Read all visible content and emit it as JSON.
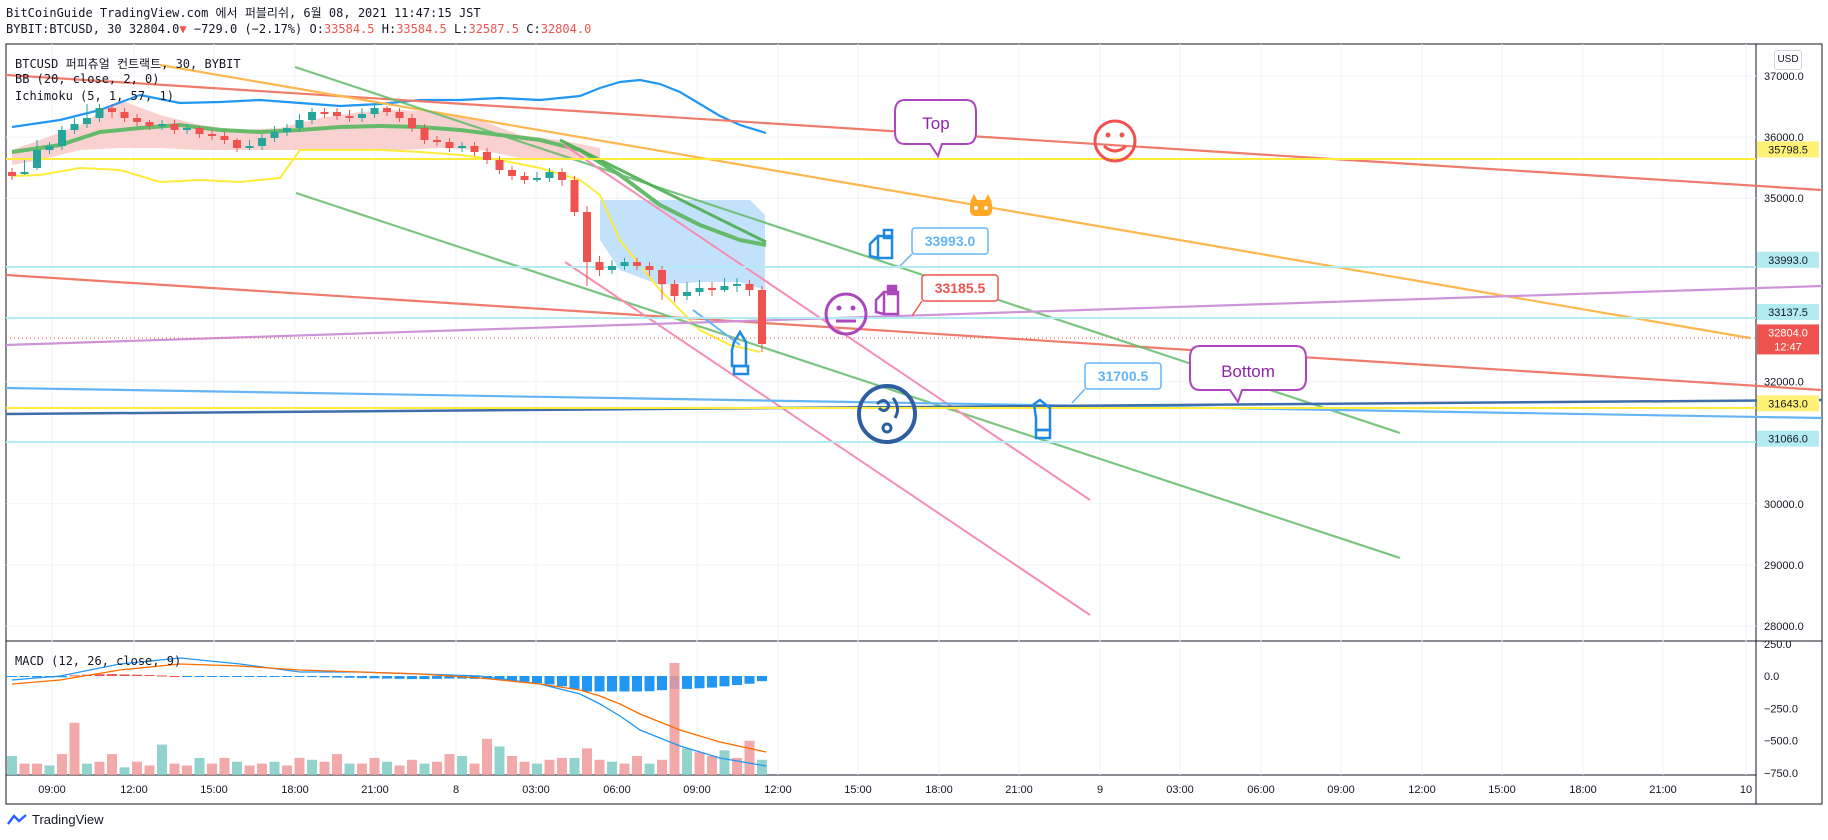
{
  "header": {
    "line1": "BitCoinGuide TradingView.com 에서 퍼블리쉬, 6월 08, 2021 11:47:15 JST",
    "symbol": "BYBIT:BTCUSD, 30",
    "last": "32804.0",
    "change": "−729.0 (−2.17%)",
    "o_label": "O:",
    "o": "33584.5",
    "h_label": "H:",
    "h": "33584.5",
    "l_label": "L:",
    "l": "32587.5",
    "c_label": "C:",
    "c": "32804.0"
  },
  "legend": {
    "title": "BTCUSD 퍼피츄얼 컨트랙트, 30, BYBIT",
    "bb": "BB (20, close, 2, 0)",
    "ichimoku": "Ichimoku (5, 1, 57, 1)",
    "macd": "MACD (12, 26, close, 9)"
  },
  "currency_button": "USD",
  "footer": {
    "brand": "TradingView"
  },
  "colors": {
    "up": "#26a69a",
    "down": "#ef5350",
    "bb": "#2196f3",
    "ichimoku_base": "#4caf50",
    "ichimoku_span": "#ffeb3b",
    "cloud_down": "#f8c5c5",
    "cloud_blue": "#bbdefb"
  },
  "annotations": {
    "top": "Top",
    "bottom": "Bottom",
    "callout_1": "33993.0",
    "callout_2": "33185.5",
    "callout_3": "31700.5"
  },
  "chart_data": {
    "type": "candlestick",
    "price_axis": {
      "ticks": [
        "37000.0",
        "36000.0",
        "35000.0",
        "32000.0",
        "30000.0",
        "29000.0",
        "28000.0"
      ],
      "range": [
        27800,
        37700
      ]
    },
    "price_labels": [
      {
        "value": "35798.5",
        "color": "#fff176",
        "text_color": "#131722"
      },
      {
        "value": "33993.0",
        "color": "#b2ebf2",
        "text_color": "#131722"
      },
      {
        "value": "33137.5",
        "color": "#b2ebf2",
        "text_color": "#131722"
      },
      {
        "value": "32804.0",
        "color": "#ef5350",
        "text_color": "#ffffff",
        "sub": "12:47"
      },
      {
        "value": "31643.0",
        "color": "#fff176",
        "text_color": "#131722"
      },
      {
        "value": "31066.0",
        "color": "#b2ebf2",
        "text_color": "#131722"
      }
    ],
    "time_axis": [
      "09:00",
      "12:00",
      "15:00",
      "18:00",
      "21:00",
      "8",
      "03:00",
      "06:00",
      "09:00",
      "12:00",
      "15:00",
      "18:00",
      "21:00",
      "9",
      "03:00",
      "06:00",
      "09:00",
      "12:00",
      "15:00",
      "18:00",
      "21:00",
      "10"
    ],
    "macd_axis": {
      "ticks": [
        "250.0",
        "0.0",
        "−250.0",
        "−500.0",
        "−750.0"
      ],
      "range": [
        -750,
        250
      ]
    }
  }
}
